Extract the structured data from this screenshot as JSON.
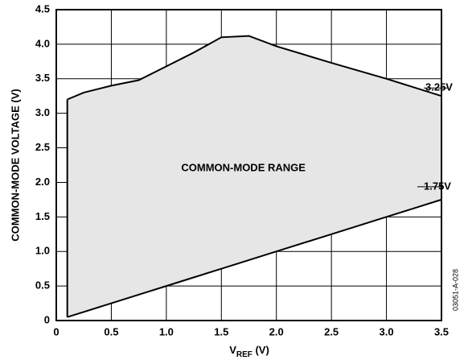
{
  "chart_data": {
    "type": "area",
    "x_label": [
      "V",
      "REF",
      " (V)"
    ],
    "y_label": "COMMON-MODE VOLTAGE (V)",
    "x": [
      0.1,
      0.25,
      0.5,
      0.75,
      1.0,
      1.25,
      1.5,
      1.75,
      2.0,
      2.5,
      3.0,
      3.5
    ],
    "series": [
      {
        "name": "upper",
        "values": [
          3.2,
          3.3,
          3.4,
          3.48,
          3.68,
          3.88,
          4.1,
          4.12,
          3.97,
          3.73,
          3.5,
          3.25
        ]
      },
      {
        "name": "lower",
        "values": [
          0.05,
          0.125,
          0.25,
          0.375,
          0.5,
          0.625,
          0.75,
          0.875,
          1.0,
          1.25,
          1.5,
          1.75
        ]
      }
    ],
    "fill_color": "#e6e6e6",
    "annotations": [
      "COMMON-MODE RANGE",
      "3.25V",
      "1.75V",
      "03051-A-028"
    ],
    "xlim": [
      0,
      3.5
    ],
    "ylim": [
      0,
      4.5
    ],
    "xticks": [
      0,
      0.5,
      {
        "value": 1,
        "label": "1.0"
      },
      1.5,
      {
        "value": 2,
        "label": "2.0"
      },
      2.5,
      {
        "value": 3,
        "label": "3.0"
      },
      3.5
    ],
    "yticks": [
      0,
      0.5,
      {
        "value": 1,
        "label": "1.0"
      },
      1.5,
      {
        "value": 2,
        "label": "2.0"
      },
      2.5,
      {
        "value": 3,
        "label": "3.0"
      },
      3.5,
      {
        "value": 4,
        "label": "4.0"
      },
      4.5
    ],
    "grid": true
  }
}
